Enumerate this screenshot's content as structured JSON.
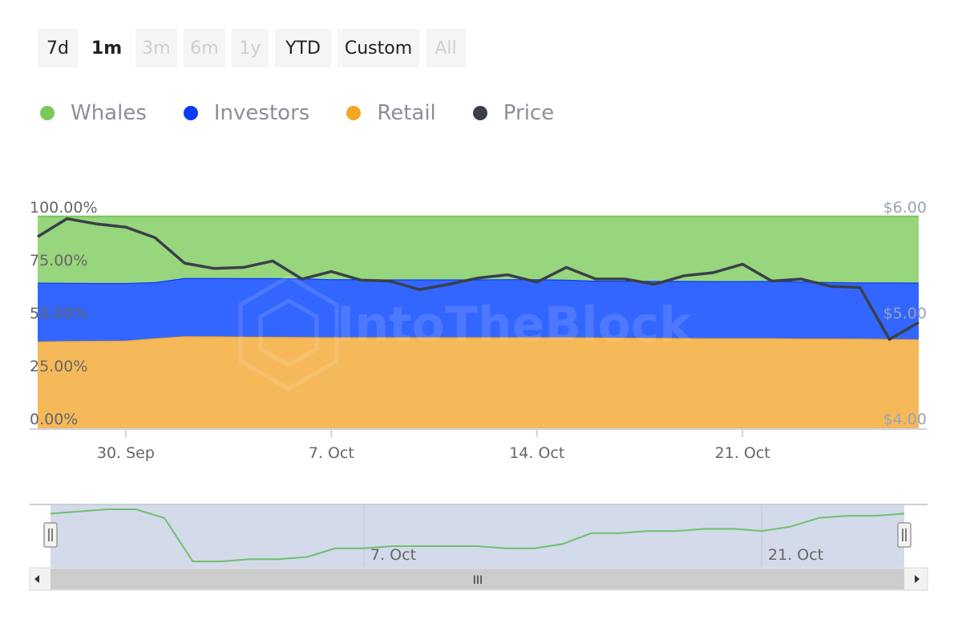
{
  "range_selector": {
    "buttons": [
      {
        "label": "7d",
        "state": "normal"
      },
      {
        "label": "1m",
        "state": "selected"
      },
      {
        "label": "3m",
        "state": "disabled"
      },
      {
        "label": "6m",
        "state": "disabled"
      },
      {
        "label": "1y",
        "state": "disabled"
      },
      {
        "label": "YTD",
        "state": "normal"
      },
      {
        "label": "Custom",
        "state": "normal"
      },
      {
        "label": "All",
        "state": "disabled"
      }
    ]
  },
  "legend": [
    {
      "label": "Whales",
      "color": "#7cc95c"
    },
    {
      "label": "Investors",
      "color": "#0a3cf5"
    },
    {
      "label": "Retail",
      "color": "#f5a623"
    },
    {
      "label": "Price",
      "color": "#3a3f4a"
    }
  ],
  "watermark": "IntoTheBlock",
  "navigator": {
    "x_labels": [
      "7. Oct",
      "21. Oct"
    ],
    "scrollbar_grip": "III"
  },
  "chart_data": {
    "type": "area",
    "stacking": "percent",
    "x": [
      "2024-09-27",
      "2024-09-28",
      "2024-09-29",
      "2024-09-30",
      "2024-10-01",
      "2024-10-02",
      "2024-10-03",
      "2024-10-04",
      "2024-10-05",
      "2024-10-06",
      "2024-10-07",
      "2024-10-08",
      "2024-10-09",
      "2024-10-10",
      "2024-10-11",
      "2024-10-12",
      "2024-10-13",
      "2024-10-14",
      "2024-10-15",
      "2024-10-16",
      "2024-10-17",
      "2024-10-18",
      "2024-10-19",
      "2024-10-20",
      "2024-10-21",
      "2024-10-22",
      "2024-10-23",
      "2024-10-24",
      "2024-10-25",
      "2024-10-26",
      "2024-10-27"
    ],
    "x_ticks": [
      {
        "date": "2024-09-30",
        "label": "30. Sep"
      },
      {
        "date": "2024-10-07",
        "label": "7. Oct"
      },
      {
        "date": "2024-10-14",
        "label": "14. Oct"
      },
      {
        "date": "2024-10-21",
        "label": "21. Oct"
      }
    ],
    "y_left": {
      "ticks": [
        "0.00%",
        "25.00%",
        "50.00%",
        "75.00%",
        "100.00%"
      ],
      "range": [
        0,
        100
      ]
    },
    "y_right": {
      "ticks": [
        "$4.00",
        "$5.00",
        "$6.00"
      ],
      "range": [
        4,
        6
      ]
    },
    "series": [
      {
        "name": "Retail",
        "color": "#f5a623",
        "values": [
          41.0,
          41.2,
          41.3,
          41.4,
          42.5,
          43.5,
          43.4,
          43.3,
          43.2,
          43.1,
          43.0,
          43.0,
          43.0,
          43.0,
          43.0,
          43.0,
          43.0,
          43.0,
          43.0,
          42.9,
          42.8,
          42.7,
          42.6,
          42.5,
          42.5,
          42.5,
          42.4,
          42.4,
          42.3,
          42.2,
          42.0
        ]
      },
      {
        "name": "Investors",
        "color": "#0a3cf5",
        "values": [
          27.8,
          27.5,
          27.3,
          27.2,
          26.5,
          27.5,
          27.6,
          27.6,
          27.7,
          27.7,
          27.4,
          27.4,
          27.3,
          27.3,
          27.3,
          27.3,
          27.4,
          27.4,
          27.2,
          26.8,
          26.9,
          26.9,
          27.0,
          27.0,
          27.0,
          27.1,
          27.0,
          26.6,
          26.6,
          26.7,
          26.8
        ]
      },
      {
        "name": "Whales",
        "color": "#7cc95c",
        "values": [
          31.2,
          31.3,
          31.4,
          31.4,
          31.0,
          29.0,
          29.0,
          29.1,
          29.1,
          29.2,
          29.6,
          29.6,
          29.7,
          29.7,
          29.7,
          29.7,
          29.6,
          29.6,
          29.8,
          30.3,
          30.3,
          30.4,
          30.4,
          30.5,
          30.5,
          30.4,
          30.6,
          31.0,
          31.1,
          31.1,
          31.2
        ]
      }
    ],
    "price": {
      "name": "Price",
      "color": "#3a3f4a",
      "axis": "right",
      "values": [
        5.81,
        5.98,
        5.93,
        5.9,
        5.8,
        5.56,
        5.51,
        5.52,
        5.58,
        5.41,
        5.48,
        5.4,
        5.39,
        5.31,
        5.36,
        5.42,
        5.45,
        5.38,
        5.52,
        5.41,
        5.41,
        5.36,
        5.44,
        5.47,
        5.55,
        5.39,
        5.41,
        5.34,
        5.33,
        4.84,
        5.0
      ]
    }
  }
}
